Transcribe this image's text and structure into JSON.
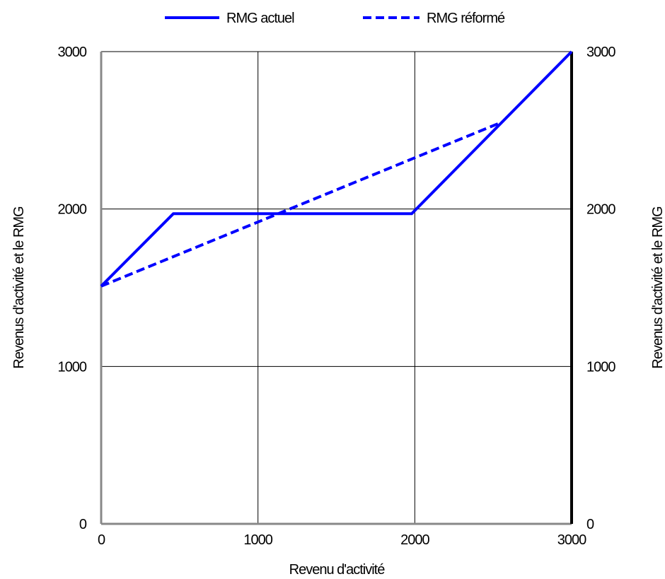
{
  "chart_data": {
    "type": "line",
    "title": "",
    "xlabel": "Revenu d'activité",
    "ylabel_left": "Revenus d'activité et le RMG",
    "ylabel_right": "Revenus d'activité et le RMG",
    "xlim": [
      0,
      3000
    ],
    "ylim": [
      0,
      3000
    ],
    "x_ticks": [
      "0",
      "1000",
      "2000",
      "3000"
    ],
    "y_ticks": [
      "0",
      "1000",
      "2000",
      "3000"
    ],
    "grid": true,
    "legend_position": "top-center",
    "series": [
      {
        "name": "RMG actuel",
        "style": "solid",
        "color": "#0000ff",
        "points": [
          [
            0,
            1510
          ],
          [
            460,
            1970
          ],
          [
            1980,
            1970
          ],
          [
            3000,
            3000
          ]
        ]
      },
      {
        "name": "RMG réformé",
        "style": "dashed",
        "color": "#0000ff",
        "points": [
          [
            0,
            1510
          ],
          [
            2550,
            2550
          ]
        ]
      }
    ]
  }
}
